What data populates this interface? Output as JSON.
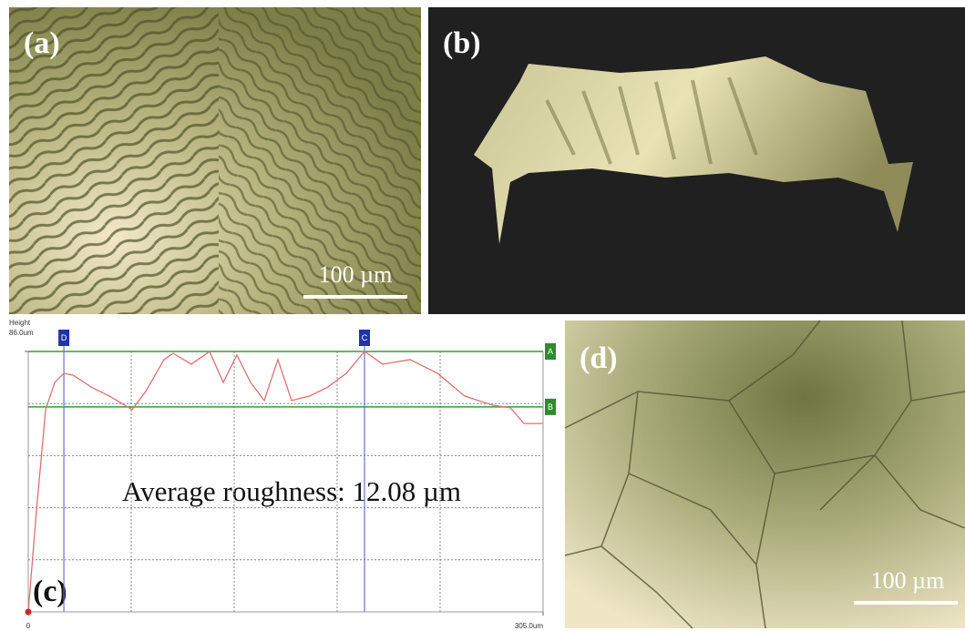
{
  "figure": {
    "panel_a": {
      "label": "(a)",
      "scale_bar": "100 µm"
    },
    "panel_b": {
      "label": "(b)"
    },
    "panel_c": {
      "label": "(c)"
    },
    "panel_d": {
      "label": "(d)",
      "scale_bar": "100 µm"
    }
  },
  "chart_data": {
    "type": "line",
    "y_axis_label": "Height",
    "annotation": "Average roughness: 12.08 µm",
    "color": "#e07070",
    "x": [
      0,
      4.9,
      10.3,
      15.7,
      21.1,
      26.5,
      37.2,
      48.0,
      61.5,
      69.6,
      80.4,
      85.8,
      96.6,
      107.4,
      115.5,
      123.6,
      131.7,
      139.8,
      147.9,
      156.0,
      166.8,
      177.6,
      188.4,
      199.2,
      210.0,
      226.2,
      242.4,
      258.5,
      274.8,
      285.6,
      293.7,
      305
    ],
    "values": [
      0,
      33.7,
      66.8,
      75.8,
      78.8,
      78.2,
      74.3,
      71.3,
      66.8,
      72.8,
      83.3,
      85.4,
      81.8,
      86.0,
      75.8,
      84.8,
      75.8,
      69.8,
      83.3,
      69.8,
      71.3,
      74.3,
      78.8,
      86.0,
      81.8,
      83.3,
      78.8,
      71.3,
      68.3,
      67.4,
      62.2,
      62.2
    ],
    "xlim": [
      0,
      305
    ],
    "ylim": [
      0,
      86
    ],
    "xticks": [
      0,
      {
        "value": 305,
        "label": "305.0um"
      }
    ],
    "yticks": [
      {
        "value": 86,
        "label": "86.0um"
      }
    ],
    "xgrid": [
      61,
      122,
      183,
      244
    ],
    "ygrid": [
      17.2,
      34.4,
      51.6,
      68.8
    ],
    "vertical_cursors": [
      {
        "label": "D",
        "x": 21.1
      },
      {
        "label": "C",
        "x": 199.2
      }
    ],
    "horizontal_cursors": [
      {
        "label": "A",
        "y": 86
      },
      {
        "label": "B",
        "y": 67.7
      }
    ]
  }
}
